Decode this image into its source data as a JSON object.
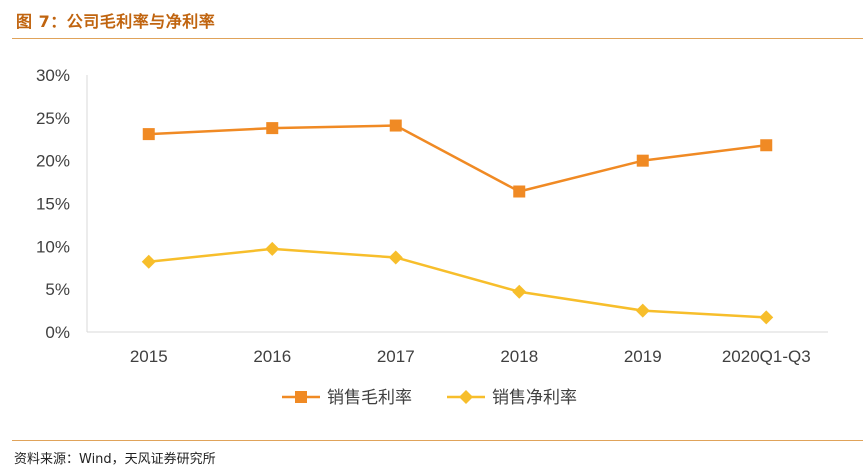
{
  "header": {
    "title": "图 7：公司毛利率与净利率"
  },
  "footer": {
    "source": "资料来源：Wind，天风证券研究所"
  },
  "colors": {
    "accent": "#C0640F",
    "gross_margin": "#F08A24",
    "net_margin": "#F7BE2B",
    "rule": "#E0A35A"
  },
  "chart_data": {
    "type": "line",
    "categories": [
      "2015",
      "2016",
      "2017",
      "2018",
      "2019",
      "2020Q1-Q3"
    ],
    "ylim": [
      0,
      30
    ],
    "yticks": [
      0,
      5,
      10,
      15,
      20,
      25,
      30
    ],
    "ytick_labels": [
      "0%",
      "5%",
      "10%",
      "15%",
      "20%",
      "25%",
      "30%"
    ],
    "unit": "%",
    "grid": false,
    "legend_position": "bottom",
    "series": [
      {
        "name": "销售毛利率",
        "marker": "square",
        "color": "#F08A24",
        "values": [
          23.1,
          23.8,
          24.1,
          16.4,
          20.0,
          21.8
        ]
      },
      {
        "name": "销售净利率",
        "marker": "diamond",
        "color": "#F7BE2B",
        "values": [
          8.2,
          9.7,
          8.7,
          4.7,
          2.5,
          1.7
        ]
      }
    ]
  }
}
